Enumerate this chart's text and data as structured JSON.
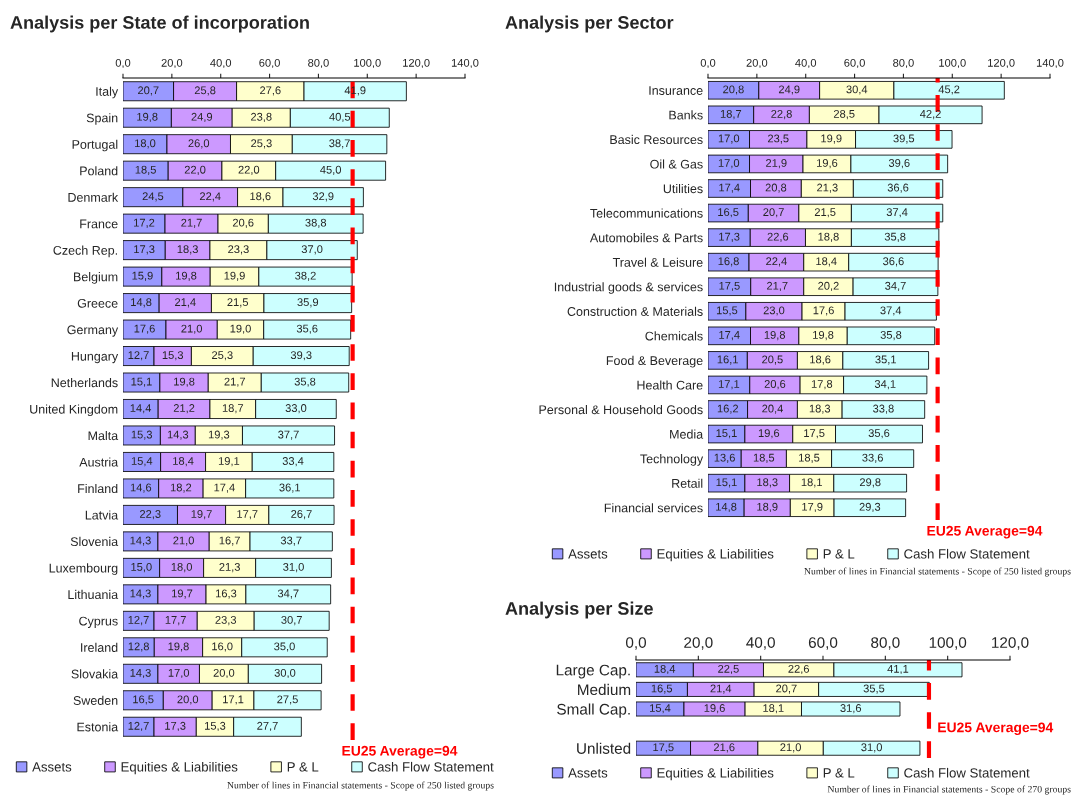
{
  "chart_data": [
    {
      "type": "bar",
      "orientation": "horizontal",
      "stacked": true,
      "title": "Analysis per State of incorporation",
      "categories": [
        "Italy",
        "Spain",
        "Portugal",
        "Poland",
        "Denmark",
        "France",
        "Czech Rep.",
        "Belgium",
        "Greece",
        "Germany",
        "Hungary",
        "Netherlands",
        "United Kingdom",
        "Malta",
        "Austria",
        "Finland",
        "Latvia",
        "Slovenia",
        "Luxembourg",
        "Lithuania",
        "Cyprus",
        "Ireland",
        "Slovakia",
        "Sweden",
        "Estonia"
      ],
      "series": [
        {
          "name": "Assets",
          "color": "#9999ff",
          "values": [
            20.7,
            19.8,
            18.0,
            18.5,
            24.5,
            17.2,
            17.3,
            15.9,
            14.8,
            17.6,
            12.7,
            15.1,
            14.4,
            15.3,
            15.4,
            14.6,
            22.3,
            14.3,
            15.0,
            14.3,
            12.7,
            12.8,
            14.3,
            16.5,
            12.7
          ],
          "value_labels": [
            "20,7",
            "19,8",
            "18,0",
            "18,5",
            "24,5",
            "17,2",
            "17,3",
            "15,9",
            "14,8",
            "17,6",
            "12,7",
            "15,1",
            "14,4",
            "15,3",
            "15,4",
            "14,6",
            "22,3",
            "14,3",
            "15,0",
            "14,3",
            "12,7",
            "12,8",
            "14,3",
            "16,5",
            "12,7"
          ]
        },
        {
          "name": "Equities & Liabilities",
          "color": "#cc99ff",
          "values": [
            25.8,
            24.9,
            26.0,
            22.0,
            22.4,
            21.7,
            18.3,
            19.8,
            21.4,
            21.0,
            15.3,
            19.8,
            21.2,
            14.3,
            18.4,
            18.2,
            19.7,
            21.0,
            18.0,
            19.7,
            17.7,
            19.8,
            17.0,
            20.0,
            17.3
          ],
          "value_labels": [
            "25,8",
            "24,9",
            "26,0",
            "22,0",
            "22,4",
            "21,7",
            "18,3",
            "19,8",
            "21,4",
            "21,0",
            "15,3",
            "19,8",
            "21,2",
            "14,3",
            "18,4",
            "18,2",
            "19,7",
            "21,0",
            "18,0",
            "19,7",
            "17,7",
            "19,8",
            "17,0",
            "20,0",
            "17,3"
          ]
        },
        {
          "name": "P & L",
          "color": "#ffffcc",
          "values": [
            27.6,
            23.8,
            25.3,
            22.0,
            18.6,
            20.6,
            23.3,
            19.9,
            21.5,
            19.0,
            25.3,
            21.7,
            18.7,
            19.3,
            19.1,
            17.4,
            17.7,
            16.7,
            21.3,
            16.3,
            23.3,
            16.0,
            20.0,
            17.1,
            15.3
          ],
          "value_labels": [
            "27,6",
            "23,8",
            "25,3",
            "22,0",
            "18,6",
            "20,6",
            "23,3",
            "19,9",
            "21,5",
            "19,0",
            "25,3",
            "21,7",
            "18,7",
            "19,3",
            "19,1",
            "17,4",
            "17,7",
            "16,7",
            "21,3",
            "16,3",
            "23,3",
            "16,0",
            "20,0",
            "17,1",
            "15,3"
          ]
        },
        {
          "name": "Cash Flow Statement",
          "color": "#ccffff",
          "values": [
            41.9,
            40.5,
            38.7,
            45.0,
            32.9,
            38.8,
            37.0,
            38.2,
            35.9,
            35.6,
            39.3,
            35.8,
            33.0,
            37.7,
            33.4,
            36.1,
            26.7,
            33.7,
            31.0,
            34.7,
            30.7,
            35.0,
            30.0,
            27.5,
            27.7
          ],
          "value_labels": [
            "41,9",
            "40,5",
            "38,7",
            "45,0",
            "32,9",
            "38,8",
            "37,0",
            "38,2",
            "35,9",
            "35,6",
            "39,3",
            "35,8",
            "33,0",
            "37,7",
            "33,4",
            "36,1",
            "26,7",
            "33,7",
            "31,0",
            "34,7",
            "30,7",
            "35,0",
            "30,0",
            "27,5",
            "27,7"
          ]
        }
      ],
      "xlim": [
        0,
        140
      ],
      "xticks": [
        {
          "value": 0,
          "label": "0,0"
        },
        {
          "value": 20,
          "label": "20,0"
        },
        {
          "value": 40,
          "label": "40,0"
        },
        {
          "value": 60,
          "label": "60,0"
        },
        {
          "value": 80,
          "label": "80,0"
        },
        {
          "value": 100,
          "label": "100,0"
        },
        {
          "value": 120,
          "label": "120,0"
        },
        {
          "value": 140,
          "label": "140,0"
        }
      ],
      "ref_lines": [
        {
          "axis": "x",
          "value": 94,
          "label": "EU25 Average=94",
          "color": "#ff0000",
          "line_style": "dashed"
        }
      ],
      "legend": "bottom",
      "grid": false,
      "annotations": [
        "Number of lines in Financial statements - Scope of 250 listed groups"
      ]
    },
    {
      "type": "bar",
      "orientation": "horizontal",
      "stacked": true,
      "title": "Analysis per Sector",
      "categories": [
        "Insurance",
        "Banks",
        "Basic Resources",
        "Oil & Gas",
        "Utilities",
        "Telecommunications",
        "Automobiles & Parts",
        "Travel & Leisure",
        "Industrial goods & services",
        "Construction & Materials",
        "Chemicals",
        "Food & Beverage",
        "Health Care",
        "Personal & Household Goods",
        "Media",
        "Technology",
        "Retail",
        "Financial services"
      ],
      "series": [
        {
          "name": "Assets",
          "color": "#9999ff",
          "values": [
            20.8,
            18.7,
            17.0,
            17.0,
            17.4,
            16.5,
            17.3,
            16.8,
            17.5,
            15.5,
            17.4,
            16.1,
            17.1,
            16.2,
            15.1,
            13.6,
            15.1,
            14.8
          ],
          "value_labels": [
            "20,8",
            "18,7",
            "17,0",
            "17,0",
            "17,4",
            "16,5",
            "17,3",
            "16,8",
            "17,5",
            "15,5",
            "17,4",
            "16,1",
            "17,1",
            "16,2",
            "15,1",
            "13,6",
            "15,1",
            "14,8"
          ]
        },
        {
          "name": "Equities & Liabilities",
          "color": "#cc99ff",
          "values": [
            24.9,
            22.8,
            23.5,
            21.9,
            20.8,
            20.7,
            22.6,
            22.4,
            21.7,
            23.0,
            19.8,
            20.5,
            20.6,
            20.4,
            19.6,
            18.5,
            18.3,
            18.9
          ],
          "value_labels": [
            "24,9",
            "22,8",
            "23,5",
            "21,9",
            "20,8",
            "20,7",
            "22,6",
            "22,4",
            "21,7",
            "23,0",
            "19,8",
            "20,5",
            "20,6",
            "20,4",
            "19,6",
            "18,5",
            "18,3",
            "18,9"
          ]
        },
        {
          "name": "P & L",
          "color": "#ffffcc",
          "values": [
            30.4,
            28.5,
            19.9,
            19.6,
            21.3,
            21.5,
            18.8,
            18.4,
            20.2,
            17.6,
            19.8,
            18.6,
            17.8,
            18.3,
            17.5,
            18.5,
            18.1,
            17.9
          ],
          "value_labels": [
            "30,4",
            "28,5",
            "19,9",
            "19,6",
            "21,3",
            "21,5",
            "18,8",
            "18,4",
            "20,2",
            "17,6",
            "19,8",
            "18,6",
            "17,8",
            "18,3",
            "17,5",
            "18,5",
            "18,1",
            "17,9"
          ]
        },
        {
          "name": "Cash Flow Statement",
          "color": "#ccffff",
          "values": [
            45.2,
            42.2,
            39.5,
            39.6,
            36.6,
            37.4,
            35.8,
            36.6,
            34.7,
            37.4,
            35.8,
            35.1,
            34.1,
            33.8,
            35.6,
            33.6,
            29.8,
            29.3
          ],
          "value_labels": [
            "45,2",
            "42,2",
            "39,5",
            "39,6",
            "36,6",
            "37,4",
            "35,8",
            "36,6",
            "34,7",
            "37,4",
            "35,8",
            "35,1",
            "34,1",
            "33,8",
            "35,6",
            "33,6",
            "29,8",
            "29,3"
          ]
        }
      ],
      "xlim": [
        0,
        140
      ],
      "xticks": [
        {
          "value": 0,
          "label": "0,0"
        },
        {
          "value": 20,
          "label": "20,0"
        },
        {
          "value": 40,
          "label": "40,0"
        },
        {
          "value": 60,
          "label": "60,0"
        },
        {
          "value": 80,
          "label": "80,0"
        },
        {
          "value": 100,
          "label": "100,0"
        },
        {
          "value": 120,
          "label": "120,0"
        },
        {
          "value": 140,
          "label": "140,0"
        }
      ],
      "ref_lines": [
        {
          "axis": "x",
          "value": 94,
          "label": "EU25 Average=94",
          "color": "#ff0000",
          "line_style": "dashed"
        }
      ],
      "legend": "bottom",
      "grid": false,
      "annotations": [
        "Number of lines in Financial statements - Scope of 250 listed groups"
      ]
    },
    {
      "type": "bar",
      "orientation": "horizontal",
      "stacked": true,
      "title": "Analysis per Size",
      "categories": [
        "Large Cap.",
        "Medium",
        "Small Cap.",
        null,
        "Unlisted"
      ],
      "series": [
        {
          "name": "Assets",
          "color": "#9999ff",
          "values": [
            18.4,
            16.5,
            15.4,
            null,
            17.5
          ],
          "value_labels": [
            "18,4",
            "16,5",
            "15,4",
            null,
            "17,5"
          ]
        },
        {
          "name": "Equities & Liabilities",
          "color": "#cc99ff",
          "values": [
            22.5,
            21.4,
            19.6,
            null,
            21.6
          ],
          "value_labels": [
            "22,5",
            "21,4",
            "19,6",
            null,
            "21,6"
          ]
        },
        {
          "name": "P & L",
          "color": "#ffffcc",
          "values": [
            22.6,
            20.7,
            18.1,
            null,
            21.0
          ],
          "value_labels": [
            "22,6",
            "20,7",
            "18,1",
            null,
            "21,0"
          ]
        },
        {
          "name": "Cash Flow Statement",
          "color": "#ccffff",
          "values": [
            41.1,
            35.5,
            31.6,
            null,
            31.0
          ],
          "value_labels": [
            "41,1",
            "35,5",
            "31,6",
            null,
            "31,0"
          ]
        }
      ],
      "xlim": [
        0,
        120
      ],
      "xticks": [
        {
          "value": 0,
          "label": "0,0"
        },
        {
          "value": 20,
          "label": "20,0"
        },
        {
          "value": 40,
          "label": "40,0"
        },
        {
          "value": 60,
          "label": "60,0"
        },
        {
          "value": 80,
          "label": "80,0"
        },
        {
          "value": 100,
          "label": "100,0"
        },
        {
          "value": 120,
          "label": "120,0"
        }
      ],
      "ref_lines": [
        {
          "axis": "x",
          "value": 94,
          "label": "EU25 Average=94",
          "color": "#ff0000",
          "line_style": "dashed"
        }
      ],
      "legend": "bottom",
      "grid": false,
      "annotations": [
        "Number of lines in Financial statements - Scope of 270 groups"
      ]
    }
  ]
}
